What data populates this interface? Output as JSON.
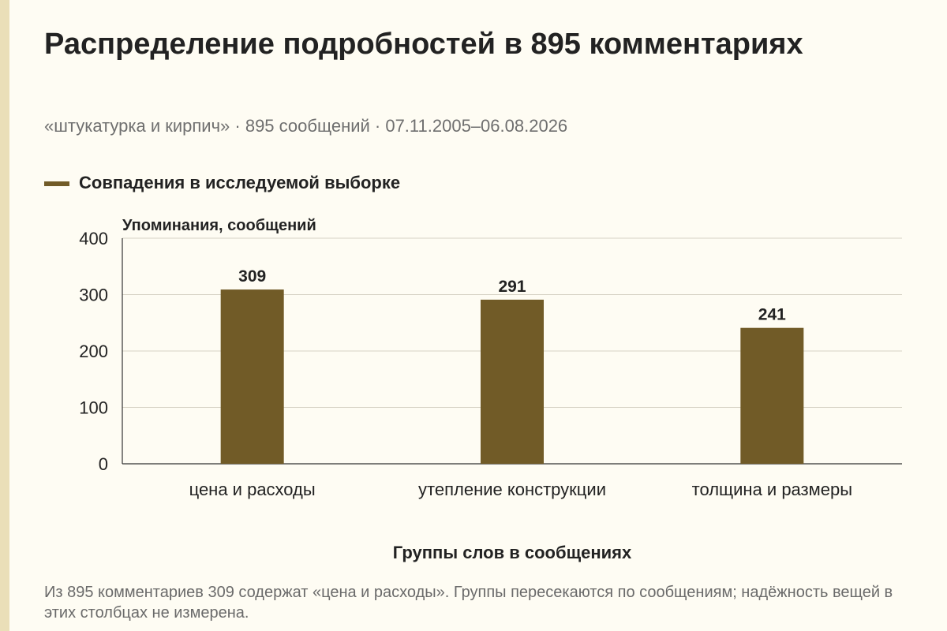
{
  "title": "Распределение подробностей в 895 комментариях",
  "subtitle": "«штукатурка и кирпич» · 895 сообщений · 07.11.2005–06.08.2026",
  "footnote": "Из 895 комментариев 309 содержат «цена и расходы». Группы пересекаются по сообщениям; надёжность вещей в этих столбцах не измерена.",
  "colors": {
    "bar": "#715b27",
    "grid": "#d6d2c4",
    "axis": "#333333",
    "background": "#fefcf3"
  },
  "chart_data": {
    "type": "bar",
    "categories": [
      "цена и расходы",
      "утепление конструкции",
      "толщина и размеры"
    ],
    "series": [
      {
        "name": "Совпадения в исследуемой выборке",
        "values": [
          309,
          291,
          241
        ]
      }
    ],
    "data_labels": [
      "309",
      "291",
      "241"
    ],
    "title": "Распределение подробностей в 895 комментариях",
    "xlabel": "Группы слов в сообщениях",
    "ylabel": "Упоминания, сообщений",
    "ylim": [
      0,
      400
    ],
    "yticks": [
      0,
      100,
      200,
      300,
      400
    ],
    "ytick_labels": [
      "0",
      "100",
      "200",
      "300",
      "400"
    ],
    "grid": true,
    "legend_position": "top-left"
  }
}
